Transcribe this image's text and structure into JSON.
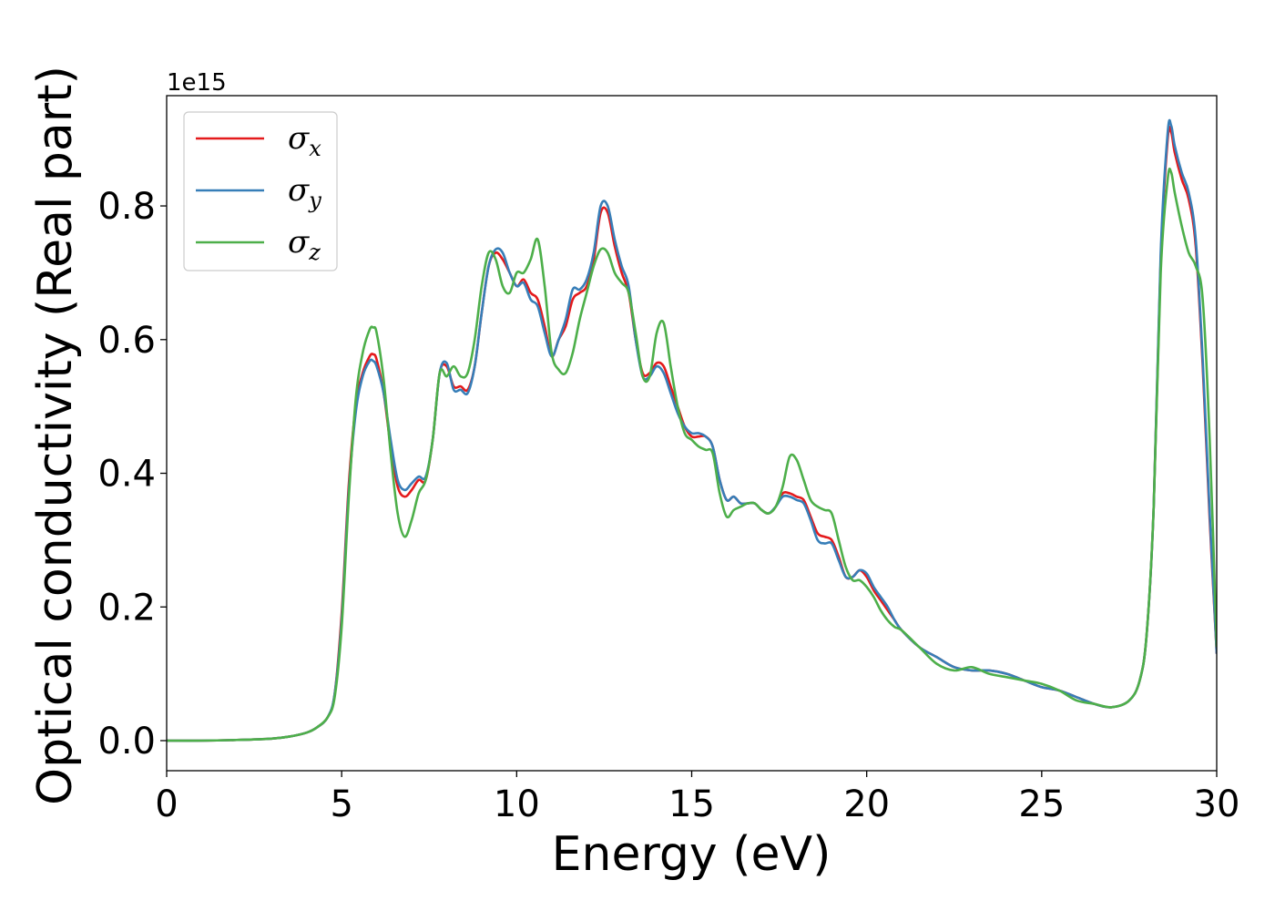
{
  "chart_data": {
    "type": "line",
    "xlabel": "Energy (eV)",
    "ylabel": "Optical conductivity (Real part)",
    "y_offset_label": "1e15",
    "xlim": [
      0,
      30
    ],
    "ylim": [
      -0.045,
      0.965
    ],
    "xticks": [
      0,
      5,
      10,
      15,
      20,
      25,
      30
    ],
    "xtick_labels": [
      "0",
      "5",
      "10",
      "15",
      "20",
      "25",
      "30"
    ],
    "yticks": [
      0.0,
      0.2,
      0.4,
      0.6,
      0.8
    ],
    "ytick_labels": [
      "0.0",
      "0.2",
      "0.4",
      "0.6",
      "0.8"
    ],
    "grid": false,
    "legend_position": "top-left",
    "series": [
      {
        "name": "σx",
        "symbol": "σ",
        "subscript": "x",
        "color": "#e41a1c",
        "x": [
          0,
          1,
          2,
          3,
          3.5,
          4,
          4.3,
          4.6,
          4.8,
          5.0,
          5.2,
          5.4,
          5.6,
          5.8,
          5.9,
          6.0,
          6.2,
          6.4,
          6.6,
          6.8,
          7.0,
          7.2,
          7.4,
          7.6,
          7.8,
          8.0,
          8.2,
          8.4,
          8.6,
          8.8,
          9.0,
          9.2,
          9.4,
          9.6,
          9.8,
          10.0,
          10.2,
          10.4,
          10.6,
          10.8,
          11.0,
          11.2,
          11.4,
          11.6,
          11.8,
          12.0,
          12.2,
          12.4,
          12.6,
          12.8,
          13.0,
          13.2,
          13.4,
          13.6,
          13.8,
          14.0,
          14.2,
          14.4,
          14.6,
          14.8,
          15.0,
          15.2,
          15.4,
          15.6,
          15.8,
          16.0,
          16.2,
          16.4,
          16.6,
          16.8,
          17.0,
          17.2,
          17.4,
          17.6,
          17.8,
          18.0,
          18.2,
          18.4,
          18.6,
          18.8,
          19.0,
          19.2,
          19.4,
          19.6,
          19.8,
          20.0,
          20.2,
          20.4,
          20.6,
          20.8,
          21.0,
          21.5,
          22.0,
          22.5,
          23.0,
          23.5,
          24.0,
          24.5,
          25.0,
          25.5,
          26.0,
          26.5,
          27.0,
          27.5,
          27.8,
          28.0,
          28.2,
          28.4,
          28.6,
          28.7,
          28.8,
          29.0,
          29.2,
          29.4,
          29.6,
          29.8,
          30.0
        ],
        "y": [
          0.0,
          0.0,
          0.001,
          0.003,
          0.006,
          0.012,
          0.02,
          0.035,
          0.07,
          0.19,
          0.38,
          0.5,
          0.55,
          0.575,
          0.578,
          0.57,
          0.52,
          0.44,
          0.38,
          0.365,
          0.375,
          0.39,
          0.39,
          0.45,
          0.55,
          0.56,
          0.53,
          0.53,
          0.525,
          0.56,
          0.64,
          0.71,
          0.73,
          0.72,
          0.7,
          0.68,
          0.69,
          0.67,
          0.66,
          0.62,
          0.575,
          0.6,
          0.62,
          0.66,
          0.67,
          0.68,
          0.72,
          0.79,
          0.79,
          0.74,
          0.7,
          0.67,
          0.6,
          0.55,
          0.55,
          0.565,
          0.56,
          0.53,
          0.5,
          0.47,
          0.455,
          0.455,
          0.455,
          0.44,
          0.39,
          0.36,
          0.365,
          0.355,
          0.355,
          0.355,
          0.345,
          0.34,
          0.35,
          0.37,
          0.37,
          0.365,
          0.36,
          0.335,
          0.31,
          0.305,
          0.3,
          0.275,
          0.245,
          0.245,
          0.255,
          0.245,
          0.225,
          0.21,
          0.195,
          0.18,
          0.165,
          0.14,
          0.125,
          0.11,
          0.105,
          0.105,
          0.1,
          0.09,
          0.08,
          0.075,
          0.065,
          0.055,
          0.05,
          0.06,
          0.09,
          0.16,
          0.35,
          0.72,
          0.9,
          0.91,
          0.88,
          0.84,
          0.81,
          0.74,
          0.56,
          0.33,
          0.13
        ]
      },
      {
        "name": "σy",
        "symbol": "σ",
        "subscript": "y",
        "color": "#377eb8",
        "x": [
          0,
          1,
          2,
          3,
          3.5,
          4,
          4.3,
          4.6,
          4.8,
          5.0,
          5.2,
          5.4,
          5.6,
          5.8,
          5.9,
          6.0,
          6.2,
          6.4,
          6.6,
          6.8,
          7.0,
          7.2,
          7.4,
          7.6,
          7.8,
          8.0,
          8.2,
          8.4,
          8.6,
          8.8,
          9.0,
          9.2,
          9.4,
          9.6,
          9.8,
          10.0,
          10.2,
          10.4,
          10.6,
          10.8,
          11.0,
          11.2,
          11.4,
          11.6,
          11.8,
          12.0,
          12.2,
          12.4,
          12.6,
          12.8,
          13.0,
          13.2,
          13.4,
          13.6,
          13.8,
          14.0,
          14.2,
          14.4,
          14.6,
          14.8,
          15.0,
          15.2,
          15.4,
          15.6,
          15.8,
          16.0,
          16.2,
          16.4,
          16.6,
          16.8,
          17.0,
          17.2,
          17.4,
          17.6,
          17.8,
          18.0,
          18.2,
          18.4,
          18.6,
          18.8,
          19.0,
          19.2,
          19.4,
          19.6,
          19.8,
          20.0,
          20.2,
          20.4,
          20.6,
          20.8,
          21.0,
          21.5,
          22.0,
          22.5,
          23.0,
          23.5,
          24.0,
          24.5,
          25.0,
          25.5,
          26.0,
          26.5,
          27.0,
          27.5,
          27.8,
          28.0,
          28.2,
          28.4,
          28.6,
          28.7,
          28.8,
          29.0,
          29.2,
          29.4,
          29.6,
          29.8,
          30.0
        ],
        "y": [
          0.0,
          0.0,
          0.001,
          0.003,
          0.006,
          0.012,
          0.02,
          0.035,
          0.07,
          0.18,
          0.37,
          0.49,
          0.545,
          0.568,
          0.568,
          0.56,
          0.52,
          0.45,
          0.39,
          0.375,
          0.385,
          0.395,
          0.395,
          0.45,
          0.55,
          0.565,
          0.525,
          0.525,
          0.52,
          0.56,
          0.64,
          0.71,
          0.735,
          0.73,
          0.7,
          0.68,
          0.685,
          0.66,
          0.65,
          0.61,
          0.575,
          0.6,
          0.63,
          0.675,
          0.675,
          0.69,
          0.73,
          0.8,
          0.8,
          0.75,
          0.71,
          0.68,
          0.6,
          0.545,
          0.545,
          0.56,
          0.55,
          0.52,
          0.49,
          0.47,
          0.46,
          0.46,
          0.455,
          0.44,
          0.39,
          0.36,
          0.365,
          0.355,
          0.355,
          0.355,
          0.345,
          0.34,
          0.35,
          0.365,
          0.365,
          0.36,
          0.355,
          0.33,
          0.3,
          0.295,
          0.295,
          0.27,
          0.245,
          0.245,
          0.255,
          0.25,
          0.23,
          0.215,
          0.2,
          0.18,
          0.165,
          0.14,
          0.125,
          0.11,
          0.105,
          0.105,
          0.1,
          0.09,
          0.08,
          0.075,
          0.065,
          0.055,
          0.05,
          0.06,
          0.09,
          0.16,
          0.35,
          0.73,
          0.91,
          0.92,
          0.89,
          0.85,
          0.82,
          0.75,
          0.57,
          0.34,
          0.13
        ]
      },
      {
        "name": "σz",
        "symbol": "σ",
        "subscript": "z",
        "color": "#4daf4a",
        "x": [
          0,
          1,
          2,
          3,
          3.5,
          4,
          4.3,
          4.6,
          4.8,
          5.0,
          5.2,
          5.4,
          5.6,
          5.8,
          5.9,
          6.0,
          6.2,
          6.4,
          6.6,
          6.8,
          7.0,
          7.2,
          7.4,
          7.6,
          7.8,
          8.0,
          8.2,
          8.4,
          8.6,
          8.8,
          9.0,
          9.2,
          9.4,
          9.6,
          9.8,
          10.0,
          10.2,
          10.4,
          10.6,
          10.8,
          11.0,
          11.2,
          11.4,
          11.6,
          11.8,
          12.0,
          12.2,
          12.4,
          12.6,
          12.8,
          13.0,
          13.2,
          13.4,
          13.6,
          13.8,
          14.0,
          14.2,
          14.4,
          14.6,
          14.8,
          15.0,
          15.2,
          15.4,
          15.6,
          15.8,
          16.0,
          16.2,
          16.4,
          16.6,
          16.8,
          17.0,
          17.2,
          17.4,
          17.6,
          17.8,
          18.0,
          18.2,
          18.4,
          18.6,
          18.8,
          19.0,
          19.2,
          19.4,
          19.6,
          19.8,
          20.0,
          20.2,
          20.4,
          20.6,
          20.8,
          21.0,
          21.5,
          22.0,
          22.5,
          23.0,
          23.5,
          24.0,
          24.5,
          25.0,
          25.5,
          26.0,
          26.5,
          27.0,
          27.5,
          27.8,
          28.0,
          28.2,
          28.4,
          28.6,
          28.7,
          28.8,
          29.0,
          29.2,
          29.4,
          29.6,
          29.8,
          30.0
        ],
        "y": [
          0.0,
          0.0,
          0.001,
          0.003,
          0.006,
          0.012,
          0.02,
          0.035,
          0.065,
          0.17,
          0.36,
          0.51,
          0.58,
          0.615,
          0.618,
          0.61,
          0.54,
          0.43,
          0.34,
          0.305,
          0.33,
          0.37,
          0.39,
          0.45,
          0.55,
          0.545,
          0.56,
          0.545,
          0.55,
          0.6,
          0.68,
          0.73,
          0.72,
          0.68,
          0.67,
          0.7,
          0.7,
          0.72,
          0.75,
          0.68,
          0.58,
          0.555,
          0.55,
          0.58,
          0.63,
          0.67,
          0.71,
          0.735,
          0.73,
          0.7,
          0.685,
          0.67,
          0.61,
          0.545,
          0.545,
          0.61,
          0.625,
          0.56,
          0.5,
          0.46,
          0.45,
          0.44,
          0.435,
          0.43,
          0.37,
          0.335,
          0.345,
          0.35,
          0.355,
          0.355,
          0.345,
          0.34,
          0.35,
          0.38,
          0.425,
          0.42,
          0.39,
          0.36,
          0.35,
          0.345,
          0.34,
          0.3,
          0.26,
          0.24,
          0.24,
          0.23,
          0.215,
          0.195,
          0.18,
          0.17,
          0.165,
          0.14,
          0.115,
          0.105,
          0.11,
          0.1,
          0.095,
          0.09,
          0.085,
          0.075,
          0.06,
          0.055,
          0.05,
          0.06,
          0.09,
          0.16,
          0.35,
          0.7,
          0.84,
          0.85,
          0.82,
          0.77,
          0.73,
          0.71,
          0.66,
          0.45,
          0.14
        ]
      }
    ]
  }
}
